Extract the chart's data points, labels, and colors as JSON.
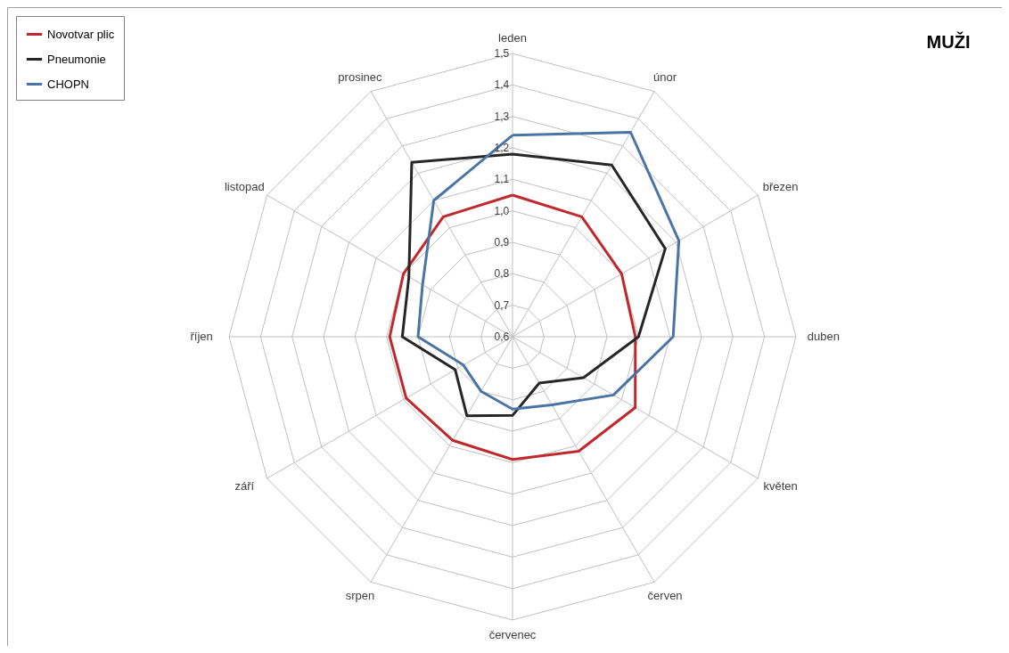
{
  "chart_data": {
    "type": "radar",
    "title": "MUŽI",
    "categories": [
      "leden",
      "únor",
      "březen",
      "duben",
      "květen",
      "červen",
      "červenec",
      "srpen",
      "září",
      "říjen",
      "listopad",
      "prosinec"
    ],
    "series": [
      {
        "name": "Novotvar plic",
        "color": "#c0282d",
        "values": [
          1.05,
          1.04,
          1.0,
          0.99,
          1.05,
          1.02,
          0.99,
          0.98,
          0.99,
          0.99,
          1.0,
          1.04
        ]
      },
      {
        "name": "Pneumonie",
        "color": "#262626",
        "values": [
          1.18,
          1.23,
          1.16,
          1.0,
          0.86,
          0.77,
          0.85,
          0.89,
          0.81,
          0.95,
          0.98,
          1.24
        ]
      },
      {
        "name": "CHOPN",
        "color": "#4a74a4",
        "values": [
          1.24,
          1.35,
          1.21,
          1.11,
          0.97,
          0.85,
          0.83,
          0.8,
          0.78,
          0.9,
          0.93,
          1.1
        ]
      }
    ],
    "ylim": [
      0.6,
      1.5
    ],
    "yticks": [
      {
        "value": 0.6,
        "label": "0,6"
      },
      {
        "value": 0.7,
        "label": "0,7"
      },
      {
        "value": 0.8,
        "label": "0,8"
      },
      {
        "value": 0.9,
        "label": "0,9"
      },
      {
        "value": 1.0,
        "label": "1,0"
      },
      {
        "value": 1.1,
        "label": "1,1"
      },
      {
        "value": 1.2,
        "label": "1,2"
      },
      {
        "value": 1.3,
        "label": "1,3"
      },
      {
        "value": 1.4,
        "label": "1,4"
      },
      {
        "value": 1.5,
        "label": "1,5"
      }
    ],
    "grid": true,
    "legend": "top left"
  }
}
